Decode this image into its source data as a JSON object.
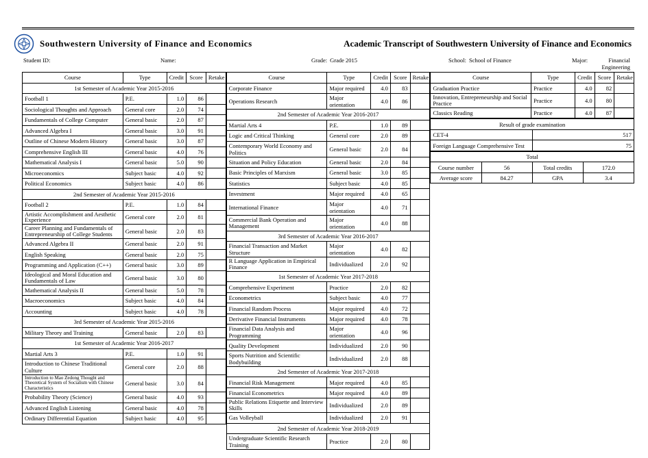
{
  "university": "Southwestern University of Finance and Economics",
  "doc_title": "Academic Transcript of Southwestern University of Finance and Economics",
  "meta": {
    "student_id_label": "Student ID:",
    "student_id": "",
    "name_label": "Name:",
    "name": "",
    "grade_label": "Grade:",
    "grade": "Grade 2015",
    "school_label": "School:",
    "school": "School of Finance",
    "major_label": "Major:",
    "major": "Financial Engineering"
  },
  "head": {
    "course": "Course",
    "type": "Type",
    "credit": "Credit",
    "score": "Score",
    "retake": "Retake"
  },
  "col1": [
    {
      "section": "1st Semester of Academic Year 2015-2016"
    },
    {
      "course": "Football 1",
      "type": "P.E.",
      "credit": "1.0",
      "score": "86"
    },
    {
      "course": "Sociological Thoughts and Approach",
      "type": "General core",
      "credit": "2.0",
      "score": "74"
    },
    {
      "course": "Fundamentals of College Computer",
      "type": "General basic",
      "credit": "2.0",
      "score": "87"
    },
    {
      "course": "Advanced Algebra I",
      "type": "General basic",
      "credit": "3.0",
      "score": "91"
    },
    {
      "course": "Outline of Chinese Modern History",
      "type": "General basic",
      "credit": "3.0",
      "score": "87"
    },
    {
      "course": "Comprehensive English III",
      "type": "General basic",
      "credit": "4.0",
      "score": "76"
    },
    {
      "course": "Mathematical Analysis I",
      "type": "General basic",
      "credit": "5.0",
      "score": "90"
    },
    {
      "course": "Microeconomics",
      "type": "Subject basic",
      "credit": "4.0",
      "score": "92"
    },
    {
      "course": "Political Economics",
      "type": "Subject basic",
      "credit": "4.0",
      "score": "86"
    },
    {
      "section": "2nd Semester of Academic Year 2015-2016"
    },
    {
      "course": "Football 2",
      "type": "P.E.",
      "credit": "1.0",
      "score": "84"
    },
    {
      "course": "Artistic Accomplishment and Aesthetic Experience",
      "type": "General core",
      "credit": "2.0",
      "score": "81",
      "two": true
    },
    {
      "course": "Career Planning and Fundamentals of Entrepreneurship of College Students",
      "type": "General basic",
      "credit": "2.0",
      "score": "83",
      "two": true
    },
    {
      "course": "Advanced Algebra II",
      "type": "General basic",
      "credit": "2.0",
      "score": "91"
    },
    {
      "course": "English Speaking",
      "type": "General basic",
      "credit": "2.0",
      "score": "75"
    },
    {
      "course": "Programming and Application (C++)",
      "type": "General basic",
      "credit": "3.0",
      "score": "89"
    },
    {
      "course": "Ideological and Moral Education and Fundamentals of Law",
      "type": "General basic",
      "credit": "3.0",
      "score": "80",
      "two": true
    },
    {
      "course": "Mathematical Analysis II",
      "type": "General basic",
      "credit": "5.0",
      "score": "78"
    },
    {
      "course": "Macroeconomics",
      "type": "Subject basic",
      "credit": "4.0",
      "score": "84"
    },
    {
      "course": "Accounting",
      "type": "Subject basic",
      "credit": "4.0",
      "score": "78"
    },
    {
      "section": "3rd Semester of Academic Year 2015-2016"
    },
    {
      "course": "Military Theory and Training",
      "type": "General basic",
      "credit": "2.0",
      "score": "83"
    },
    {
      "section": "1st Semester of Academic Year 2016-2017"
    },
    {
      "course": "Martial Arts 3",
      "type": "P.E.",
      "credit": "1.0",
      "score": "91"
    },
    {
      "course": "Introduction to Chinese Traditional Culture",
      "type": "General core",
      "credit": "2.0",
      "score": "88"
    },
    {
      "course": "Introduction to Mao Zedong Thought and Theoretical System of Socialism with Chinese Characteristics",
      "type": "General basic",
      "credit": "3.0",
      "score": "84",
      "small": true
    },
    {
      "course": "Probability Theory (Science)",
      "type": "General basic",
      "credit": "4.0",
      "score": "93"
    },
    {
      "course": "Advanced English Listening",
      "type": "General basic",
      "credit": "4.0",
      "score": "78"
    },
    {
      "course": "Ordinary Differential Equation",
      "type": "Subject basic",
      "credit": "4.0",
      "score": "95"
    }
  ],
  "col2": [
    {
      "course": "Corporate Finance",
      "type": "Major required",
      "credit": "4.0",
      "score": "83"
    },
    {
      "course": "Operations Research",
      "type": "Major orientation",
      "credit": "4.0",
      "score": "86"
    },
    {
      "section": "2nd Semester of Academic Year 2016-2017"
    },
    {
      "course": "Martial Arts 4",
      "type": "P.E.",
      "credit": "1.0",
      "score": "89"
    },
    {
      "course": "Logic and Critical Thinking",
      "type": "General core",
      "credit": "2.0",
      "score": "89"
    },
    {
      "course": "Contemporary World Economy and Politics",
      "type": "General basic",
      "credit": "2.0",
      "score": "84"
    },
    {
      "course": "Situation and Policy Education",
      "type": "General basic",
      "credit": "2.0",
      "score": "84"
    },
    {
      "course": "Basic Principles of Marxism",
      "type": "General basic",
      "credit": "3.0",
      "score": "85"
    },
    {
      "course": "Statistics",
      "type": "Subject basic",
      "credit": "4.0",
      "score": "85"
    },
    {
      "course": "Investment",
      "type": "Major required",
      "credit": "4.0",
      "score": "65"
    },
    {
      "course": "International Finance",
      "type": "Major orientation",
      "credit": "4.0",
      "score": "71"
    },
    {
      "course": "Commercial Bank Operation and Management",
      "type": "Major orientation",
      "credit": "4.0",
      "score": "88",
      "two": true
    },
    {
      "section": "3rd Semester of Academic Year 2016-2017"
    },
    {
      "course": "Financial Transaction and Market Structure",
      "type": "Major orientation",
      "credit": "4.0",
      "score": "82"
    },
    {
      "course": "R Language Application in Empirical Finance",
      "type": "Individualized",
      "credit": "2.0",
      "score": "92",
      "two": true
    },
    {
      "section": "1st Semester of Academic Year 2017-2018"
    },
    {
      "course": "Comprehensive Experiment",
      "type": "Practice",
      "credit": "2.0",
      "score": "82"
    },
    {
      "course": "Econometrics",
      "type": "Subject basic",
      "credit": "4.0",
      "score": "77"
    },
    {
      "course": "Financial Random Process",
      "type": "Major required",
      "credit": "4.0",
      "score": "72"
    },
    {
      "course": "Derivative Financial Instruments",
      "type": "Major required",
      "credit": "4.0",
      "score": "78"
    },
    {
      "course": "Financial Data Analysis and Programming",
      "type": "Major orientation",
      "credit": "4.0",
      "score": "96"
    },
    {
      "course": "Quality Development",
      "type": "Individualized",
      "credit": "2.0",
      "score": "90"
    },
    {
      "course": "Sports Nutrition and Scientific Bodybuilding",
      "type": "Individualized",
      "credit": "2.0",
      "score": "88"
    },
    {
      "section": "2nd Semester of Academic Year 2017-2018"
    },
    {
      "course": "Financial Risk Management",
      "type": "Major required",
      "credit": "4.0",
      "score": "85"
    },
    {
      "course": "Financial Econometrics",
      "type": "Major required",
      "credit": "4.0",
      "score": "89"
    },
    {
      "course": "Public Relations Etiquette and Interview Skills",
      "type": "Individualized",
      "credit": "2.0",
      "score": "89",
      "two": true
    },
    {
      "course": "Gas Volleyball",
      "type": "Individualized",
      "credit": "2.0",
      "score": "91"
    },
    {
      "section": "2nd Semester of Academic Year 2018-2019"
    },
    {
      "course": "Undergraduate Scientific Research Training",
      "type": "Practice",
      "credit": "2.0",
      "score": "80"
    }
  ],
  "col3_top": [
    {
      "course": "Graduation Practice",
      "type": "Practice",
      "credit": "4.0",
      "score": "82"
    },
    {
      "course": "Innovation, Entrepreneurship and Social Practice",
      "type": "Practice",
      "credit": "4.0",
      "score": "80",
      "two": true
    },
    {
      "course": "Classics Reading",
      "type": "Practice",
      "credit": "4.0",
      "score": "87"
    }
  ],
  "exam": {
    "header": "Result of grade examination",
    "rows": [
      {
        "label": "CET-4",
        "val": "517"
      },
      {
        "label": "Foreign Language Comprehensive Test",
        "val": "75"
      }
    ]
  },
  "totals": {
    "header": "Total",
    "course_number_label": "Course number",
    "course_number": "56",
    "total_credits_label": "Total credits",
    "total_credits": "172.0",
    "avg_label": "Average score",
    "avg": "84.27",
    "gpa_label": "GPA",
    "gpa": "3.4"
  }
}
